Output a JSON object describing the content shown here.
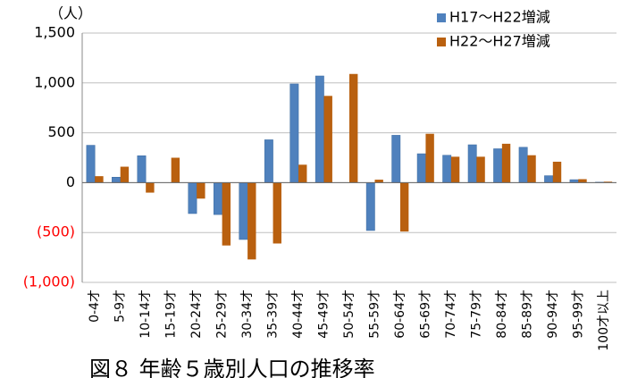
{
  "chart_data": {
    "type": "bar",
    "unit_label": "（人）",
    "caption": "図８ 年齢５歳別人口の推移率",
    "categories": [
      "0-4才",
      "5-9才",
      "10-14才",
      "15-19才",
      "20-24才",
      "25-29才",
      "30-34才",
      "35-39才",
      "40-44才",
      "45-49才",
      "50-54才",
      "55-59才",
      "60-64才",
      "65-69才",
      "70-74才",
      "75-79才",
      "80-84才",
      "85-89才",
      "90-94才",
      "95-99才",
      "100才以上"
    ],
    "series": [
      {
        "name": "H17〜H22増減",
        "color": "#4f81bd",
        "values": [
          375,
          55,
          270,
          0,
          -310,
          -320,
          -570,
          430,
          990,
          1070,
          0,
          -480,
          475,
          290,
          275,
          380,
          340,
          355,
          70,
          30,
          5
        ]
      },
      {
        "name": "H22〜H27増減",
        "color": "#b9600f",
        "values": [
          65,
          160,
          -100,
          250,
          -160,
          -630,
          -770,
          -610,
          180,
          870,
          1090,
          30,
          -490,
          490,
          260,
          260,
          390,
          275,
          210,
          35,
          10
        ]
      }
    ],
    "ylim": [
      -1000,
      1500
    ],
    "yticks": [
      {
        "value": -1000,
        "label": "(1,000)"
      },
      {
        "value": -500,
        "label": "(500)"
      },
      0,
      500,
      {
        "value": 1000,
        "label": "1,000"
      },
      {
        "value": 1500,
        "label": "1,500"
      }
    ],
    "negative_tick_color": "#ff0000",
    "grid": true,
    "legend": "upper right"
  }
}
